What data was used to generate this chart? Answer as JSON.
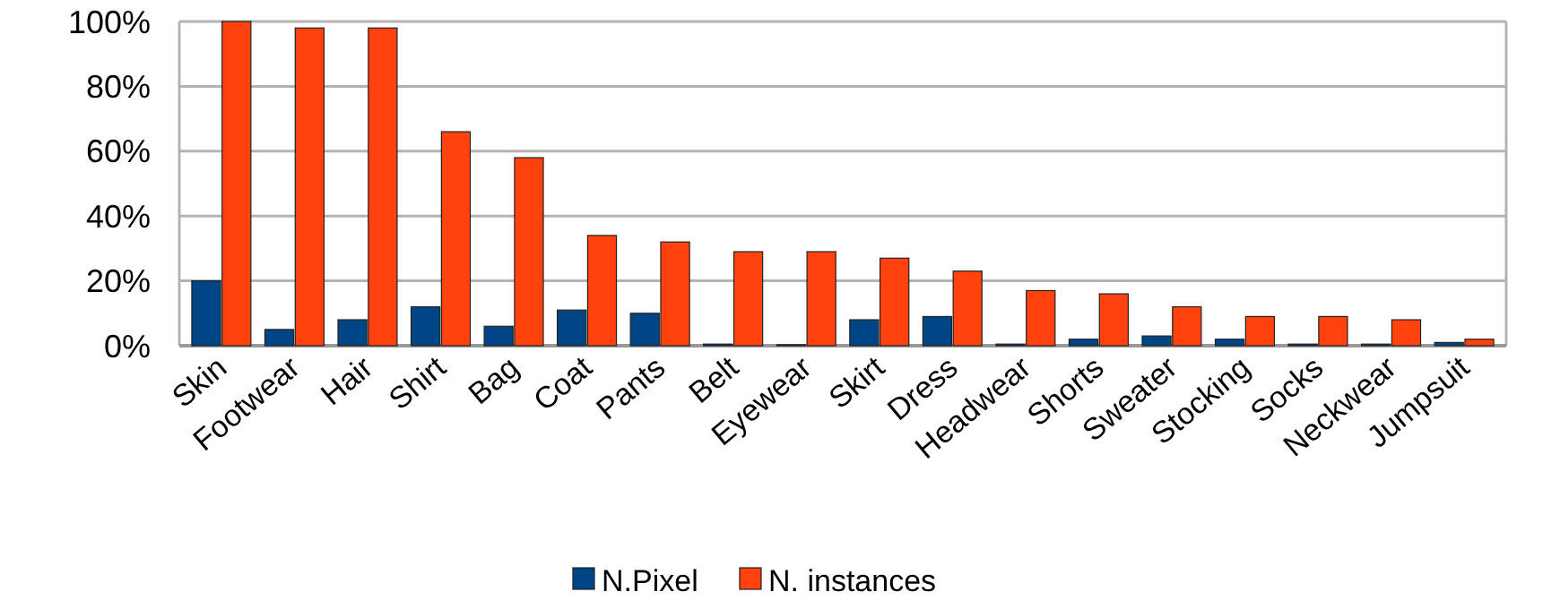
{
  "chart_data": {
    "type": "bar",
    "categories": [
      "Skin",
      "Footwear",
      "Hair",
      "Shirt",
      "Bag",
      "Coat",
      "Pants",
      "Belt",
      "Eyewear",
      "Skirt",
      "Dress",
      "Headwear",
      "Shorts",
      "Sweater",
      "Stocking",
      "Socks",
      "Neckwear",
      "Jumpsuit"
    ],
    "series": [
      {
        "name": "N.Pixel",
        "color": "#004586",
        "values": [
          20,
          5,
          8,
          12,
          6,
          11,
          10,
          0.5,
          0.3,
          8,
          9,
          0.5,
          2,
          3,
          2,
          0.5,
          0.5,
          1
        ]
      },
      {
        "name": "N. instances",
        "color": "#ff420e",
        "values": [
          100,
          98,
          98,
          66,
          58,
          34,
          32,
          29,
          29,
          27,
          23,
          17,
          16,
          12,
          9,
          9,
          8,
          2
        ]
      }
    ],
    "ylim": [
      0,
      100
    ],
    "yticks": [
      {
        "value": 0,
        "label": "0%"
      },
      {
        "value": 20,
        "label": "20%"
      },
      {
        "value": 40,
        "label": "40%"
      },
      {
        "value": 60,
        "label": "60%"
      },
      {
        "value": 80,
        "label": "80%"
      },
      {
        "value": 100,
        "label": "100%"
      }
    ],
    "grid": "y",
    "legend": "bottom"
  }
}
